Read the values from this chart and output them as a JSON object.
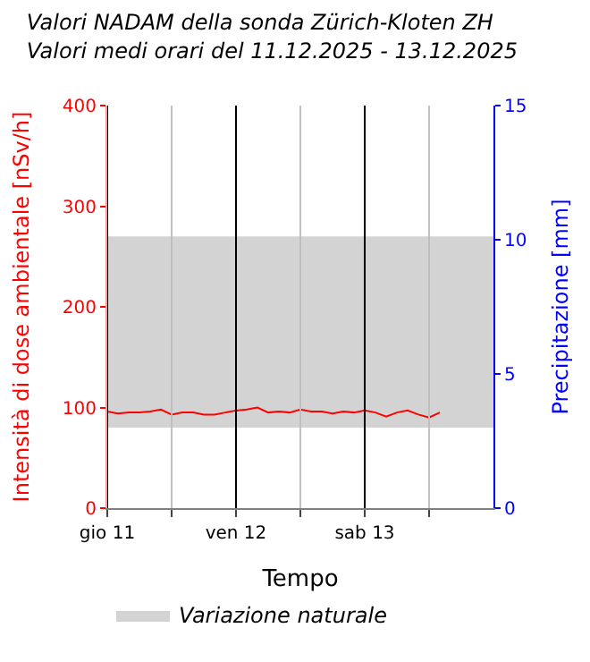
{
  "chart_data": {
    "type": "line",
    "title": "Valori NADAM della sonda Zürich-Kloten ZH",
    "subtitle": "Valori medi orari del 11.12.2025 - 13.12.2025",
    "xlabel": "Tempo",
    "ylabel": "Intensità di dose ambientale [nSv/h]",
    "y2label": "Precipitazione [mm]",
    "x": [
      "2025-12-11T00:00",
      "2025-12-11T02:00",
      "2025-12-11T04:00",
      "2025-12-11T06:00",
      "2025-12-11T08:00",
      "2025-12-11T10:00",
      "2025-12-11T12:00",
      "2025-12-11T14:00",
      "2025-12-11T16:00",
      "2025-12-11T18:00",
      "2025-12-11T20:00",
      "2025-12-11T22:00",
      "2025-12-12T00:00",
      "2025-12-12T02:00",
      "2025-12-12T04:00",
      "2025-12-12T06:00",
      "2025-12-12T08:00",
      "2025-12-12T10:00",
      "2025-12-12T12:00",
      "2025-12-12T14:00",
      "2025-12-12T16:00",
      "2025-12-12T18:00",
      "2025-12-12T20:00",
      "2025-12-12T22:00",
      "2025-12-13T00:00",
      "2025-12-13T02:00",
      "2025-12-13T04:00",
      "2025-12-13T06:00",
      "2025-12-13T08:00",
      "2025-12-13T10:00",
      "2025-12-13T12:00",
      "2025-12-13T14:00"
    ],
    "series": [
      {
        "color": "#ff0000",
        "values": [
          96,
          94,
          95,
          95,
          96,
          98,
          93,
          95,
          95,
          93,
          93,
          95,
          97,
          98,
          100,
          95,
          96,
          95,
          98,
          96,
          96,
          94,
          96,
          95,
          97,
          95,
          91,
          95,
          97,
          93,
          90,
          95
        ]
      }
    ],
    "bands": [
      {
        "axis": "y",
        "from": 80,
        "to": 270,
        "label": "Variazione naturale",
        "color": "#d3d3d3"
      }
    ],
    "xlim": [
      "2025-12-11T00:00",
      "2025-12-14T00:00"
    ],
    "xticks": [
      {
        "value": "2025-12-11T00:00",
        "label": "gio 11"
      },
      {
        "value": "2025-12-11T12:00",
        "label": null
      },
      {
        "value": "2025-12-12T00:00",
        "label": "ven 12"
      },
      {
        "value": "2025-12-12T12:00",
        "label": null
      },
      {
        "value": "2025-12-13T00:00",
        "label": "sab 13"
      },
      {
        "value": "2025-12-13T12:00",
        "label": null
      }
    ],
    "ylim": [
      0,
      400
    ],
    "yticks": [
      0,
      100,
      200,
      300,
      400
    ],
    "y2lim": [
      0,
      15
    ],
    "y2ticks": [
      0,
      5,
      10,
      15
    ],
    "grid": "x",
    "legend": "bottom left",
    "marker": "none",
    "line_style": "solid"
  }
}
